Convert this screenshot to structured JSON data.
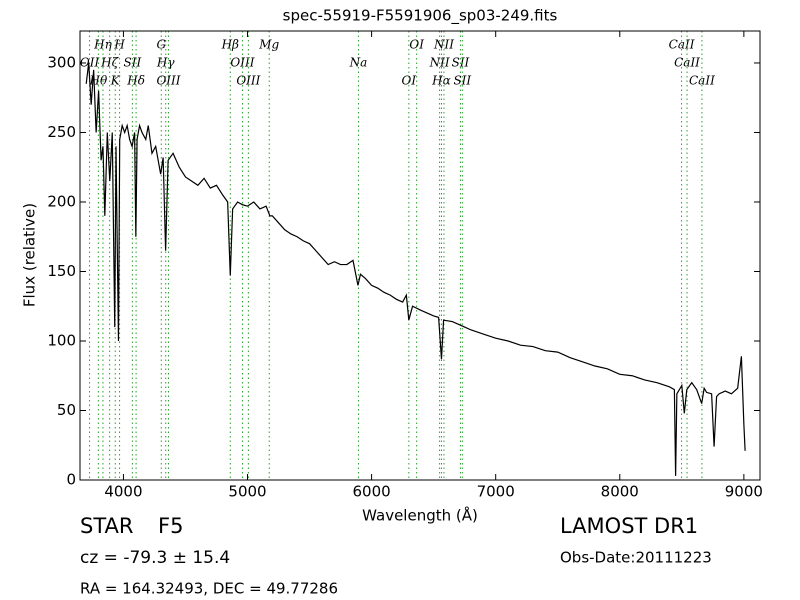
{
  "chart_data": {
    "type": "line",
    "title": "spec-55919-F5591906_sp03-249.fits",
    "x_label": "Wavelength (Å)",
    "y_label": "Flux (relative)",
    "xlim": [
      3650,
      9130
    ],
    "ylim": [
      0,
      323
    ],
    "xticks": [
      4000,
      5000,
      6000,
      7000,
      8000,
      9000
    ],
    "yticks": [
      0,
      50,
      100,
      150,
      200,
      250,
      300
    ],
    "color": "#000000",
    "line_color": "#2ca02c",
    "x": [
      3700,
      3720,
      3740,
      3760,
      3780,
      3800,
      3820,
      3835,
      3850,
      3870,
      3890,
      3910,
      3930,
      3940,
      3960,
      3970,
      3990,
      4010,
      4030,
      4050,
      4070,
      4090,
      4100,
      4110,
      4130,
      4150,
      4180,
      4200,
      4230,
      4260,
      4300,
      4320,
      4340,
      4360,
      4400,
      4450,
      4500,
      4550,
      4600,
      4650,
      4700,
      4750,
      4800,
      4840,
      4861,
      4880,
      4920,
      4960,
      5000,
      5050,
      5100,
      5150,
      5180,
      5200,
      5250,
      5300,
      5350,
      5400,
      5450,
      5500,
      5550,
      5600,
      5650,
      5700,
      5750,
      5800,
      5850,
      5890,
      5910,
      5950,
      6000,
      6050,
      6100,
      6150,
      6200,
      6250,
      6280,
      6300,
      6330,
      6400,
      6450,
      6500,
      6540,
      6563,
      6580,
      6650,
      6700,
      6750,
      6800,
      6900,
      7000,
      7100,
      7200,
      7300,
      7400,
      7500,
      7600,
      7700,
      7800,
      7900,
      8000,
      8100,
      8200,
      8300,
      8400,
      8440,
      8450,
      8460,
      8500,
      8520,
      8540,
      8580,
      8620,
      8660,
      8680,
      8700,
      8740,
      8760,
      8780,
      8800,
      8850,
      8900,
      8950,
      8980,
      9000,
      9010
    ],
    "values": [
      285,
      300,
      270,
      295,
      250,
      280,
      230,
      240,
      190,
      250,
      215,
      250,
      110,
      240,
      100,
      245,
      255,
      250,
      255,
      245,
      240,
      250,
      175,
      245,
      255,
      250,
      245,
      255,
      235,
      240,
      220,
      232,
      165,
      230,
      235,
      225,
      218,
      215,
      212,
      217,
      210,
      212,
      205,
      200,
      147,
      195,
      200,
      198,
      197,
      200,
      195,
      197,
      190,
      190,
      185,
      180,
      177,
      175,
      172,
      170,
      165,
      160,
      155,
      157,
      155,
      155,
      158,
      140,
      148,
      145,
      140,
      138,
      135,
      133,
      130,
      128,
      133,
      115,
      125,
      122,
      120,
      118,
      117,
      87,
      115,
      114,
      112,
      110,
      108,
      105,
      102,
      100,
      97,
      96,
      93,
      92,
      88,
      85,
      82,
      80,
      76,
      75,
      72,
      70,
      67,
      65,
      3,
      62,
      68,
      48,
      65,
      70,
      65,
      55,
      66,
      63,
      62,
      24,
      60,
      62,
      64,
      62,
      66,
      89,
      40,
      21
    ],
    "lines": [
      {
        "wavelength": 3727,
        "label": "OII"
      },
      {
        "wavelength": 3798,
        "label": "Hθ"
      },
      {
        "wavelength": 3835,
        "label": "Hη"
      },
      {
        "wavelength": 3889,
        "label": "Hζ"
      },
      {
        "wavelength": 3934,
        "label": "K"
      },
      {
        "wavelength": 3969,
        "label": "H"
      },
      {
        "wavelength": 4072,
        "label": "SII"
      },
      {
        "wavelength": 4102,
        "label": "Hδ"
      },
      {
        "wavelength": 4305,
        "label": "G"
      },
      {
        "wavelength": 4341,
        "label": "Hγ"
      },
      {
        "wavelength": 4363,
        "label": "OIII"
      },
      {
        "wavelength": 4861,
        "label": "Hβ"
      },
      {
        "wavelength": 4959,
        "label": "OIII"
      },
      {
        "wavelength": 5007,
        "label": "OIII"
      },
      {
        "wavelength": 5175,
        "label": "Mg"
      },
      {
        "wavelength": 5894,
        "label": "Na"
      },
      {
        "wavelength": 6300,
        "label": "OI"
      },
      {
        "wavelength": 6363,
        "label": "OI"
      },
      {
        "wavelength": 6548,
        "label": "NII"
      },
      {
        "wavelength": 6563,
        "label": "Hα"
      },
      {
        "wavelength": 6583,
        "label": "NII"
      },
      {
        "wavelength": 6716,
        "label": "SII"
      },
      {
        "wavelength": 6731,
        "label": "SII"
      },
      {
        "wavelength": 8498,
        "label": "CaII"
      },
      {
        "wavelength": 8542,
        "label": "CaII"
      },
      {
        "wavelength": 8662,
        "label": "CaII"
      }
    ],
    "annotations": {
      "class": "STAR",
      "subclass": "F5",
      "redshift": "cz = -79.3 ± 15.4",
      "coords": "RA = 164.32493, DEC = 49.77286",
      "survey": "LAMOST DR1",
      "date": "Obs-Date:20111223"
    }
  }
}
